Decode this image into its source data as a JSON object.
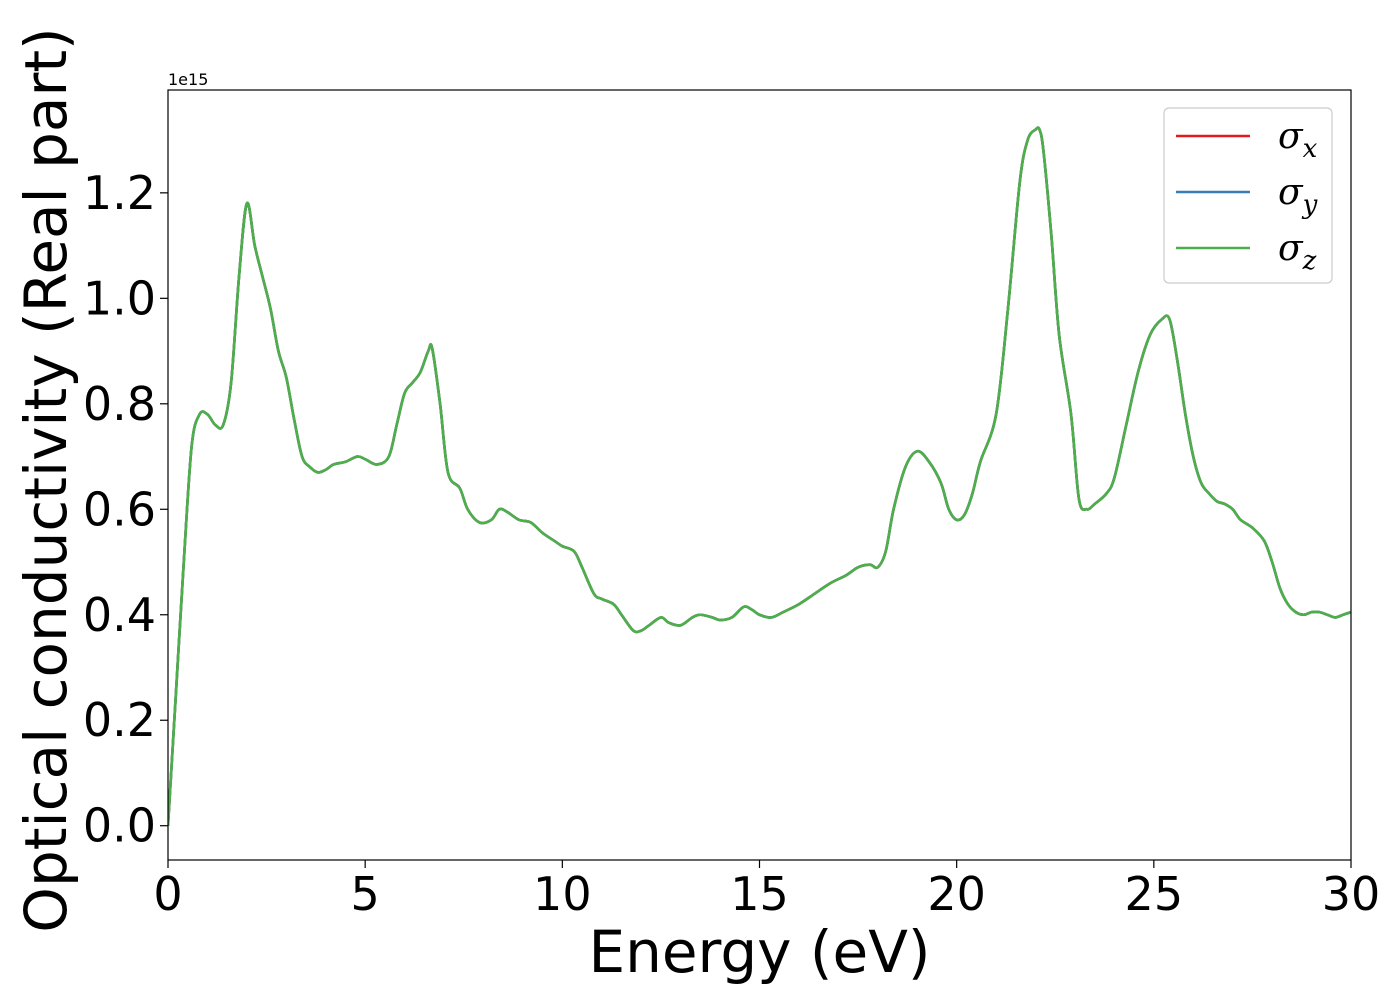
{
  "chart_data": {
    "type": "line",
    "xlabel": "Energy (eV)",
    "ylabel": "Optical conductivity (Real part)",
    "y_offset_label": "1e15",
    "xlim": [
      0,
      30
    ],
    "ylim": [
      -0.065,
      1.395
    ],
    "xticks": [
      0,
      5,
      10,
      15,
      20,
      25,
      30
    ],
    "yticks": [
      0.0,
      0.2,
      0.4,
      0.6,
      0.8,
      1.0,
      1.2
    ],
    "xtick_labels": [
      "0",
      "5",
      "10",
      "15",
      "20",
      "25",
      "30"
    ],
    "ytick_labels": [
      "0.0",
      "0.2",
      "0.4",
      "0.6",
      "0.8",
      "1.0",
      "1.2"
    ],
    "grid": false,
    "legend_position": "top-right",
    "series": [
      {
        "name": "σx",
        "base": "σ",
        "sub": "x",
        "color": "#e41a1c"
      },
      {
        "name": "σy",
        "base": "σ",
        "sub": "y",
        "color": "#377eb8"
      },
      {
        "name": "σz",
        "base": "σ",
        "sub": "z",
        "color": "#4daf4a"
      }
    ],
    "x": [
      0,
      0.2,
      0.4,
      0.6,
      0.8,
      1.0,
      1.2,
      1.4,
      1.6,
      1.8,
      2.0,
      2.2,
      2.4,
      2.6,
      2.8,
      3.0,
      3.2,
      3.4,
      3.6,
      3.8,
      4.0,
      4.2,
      4.5,
      4.8,
      5.0,
      5.3,
      5.6,
      5.8,
      6.0,
      6.2,
      6.4,
      6.6,
      6.7,
      6.9,
      7.1,
      7.4,
      7.6,
      7.9,
      8.2,
      8.4,
      8.6,
      8.9,
      9.2,
      9.5,
      9.8,
      10.0,
      10.3,
      10.5,
      10.8,
      11.0,
      11.3,
      11.5,
      11.8,
      12.0,
      12.2,
      12.5,
      12.7,
      13.0,
      13.3,
      13.5,
      13.8,
      14.0,
      14.3,
      14.6,
      14.8,
      15.0,
      15.3,
      15.6,
      16.0,
      16.4,
      16.8,
      17.2,
      17.5,
      17.8,
      18.0,
      18.2,
      18.4,
      18.7,
      19.0,
      19.3,
      19.6,
      19.8,
      20.0,
      20.2,
      20.4,
      20.6,
      21.0,
      21.3,
      21.6,
      21.8,
      22.0,
      22.1,
      22.2,
      22.4,
      22.6,
      22.9,
      23.1,
      23.3,
      23.5,
      23.8,
      24.0,
      24.3,
      24.6,
      24.9,
      25.2,
      25.4,
      25.6,
      25.8,
      26.0,
      26.2,
      26.4,
      26.6,
      26.8,
      27.0,
      27.2,
      27.5,
      27.8,
      28.0,
      28.2,
      28.4,
      28.6,
      28.8,
      29.0,
      29.2,
      29.4,
      29.6,
      29.8,
      30.0
    ],
    "y": [
      0.0,
      0.25,
      0.5,
      0.72,
      0.78,
      0.78,
      0.76,
      0.76,
      0.84,
      1.04,
      1.18,
      1.1,
      1.04,
      0.98,
      0.9,
      0.85,
      0.77,
      0.7,
      0.68,
      0.67,
      0.675,
      0.685,
      0.69,
      0.7,
      0.695,
      0.685,
      0.7,
      0.76,
      0.82,
      0.84,
      0.86,
      0.9,
      0.905,
      0.8,
      0.67,
      0.64,
      0.6,
      0.575,
      0.58,
      0.6,
      0.595,
      0.58,
      0.575,
      0.555,
      0.54,
      0.53,
      0.52,
      0.49,
      0.44,
      0.43,
      0.42,
      0.4,
      0.37,
      0.37,
      0.38,
      0.395,
      0.385,
      0.38,
      0.395,
      0.4,
      0.395,
      0.39,
      0.395,
      0.415,
      0.41,
      0.4,
      0.395,
      0.405,
      0.42,
      0.44,
      0.46,
      0.475,
      0.49,
      0.495,
      0.49,
      0.52,
      0.6,
      0.68,
      0.71,
      0.69,
      0.65,
      0.6,
      0.58,
      0.59,
      0.63,
      0.69,
      0.78,
      0.98,
      1.22,
      1.3,
      1.32,
      1.32,
      1.28,
      1.12,
      0.93,
      0.78,
      0.62,
      0.6,
      0.61,
      0.63,
      0.66,
      0.76,
      0.86,
      0.93,
      0.96,
      0.96,
      0.88,
      0.78,
      0.7,
      0.65,
      0.63,
      0.615,
      0.61,
      0.6,
      0.58,
      0.565,
      0.54,
      0.5,
      0.45,
      0.42,
      0.405,
      0.4,
      0.405,
      0.405,
      0.4,
      0.395,
      0.4,
      0.405
    ]
  }
}
